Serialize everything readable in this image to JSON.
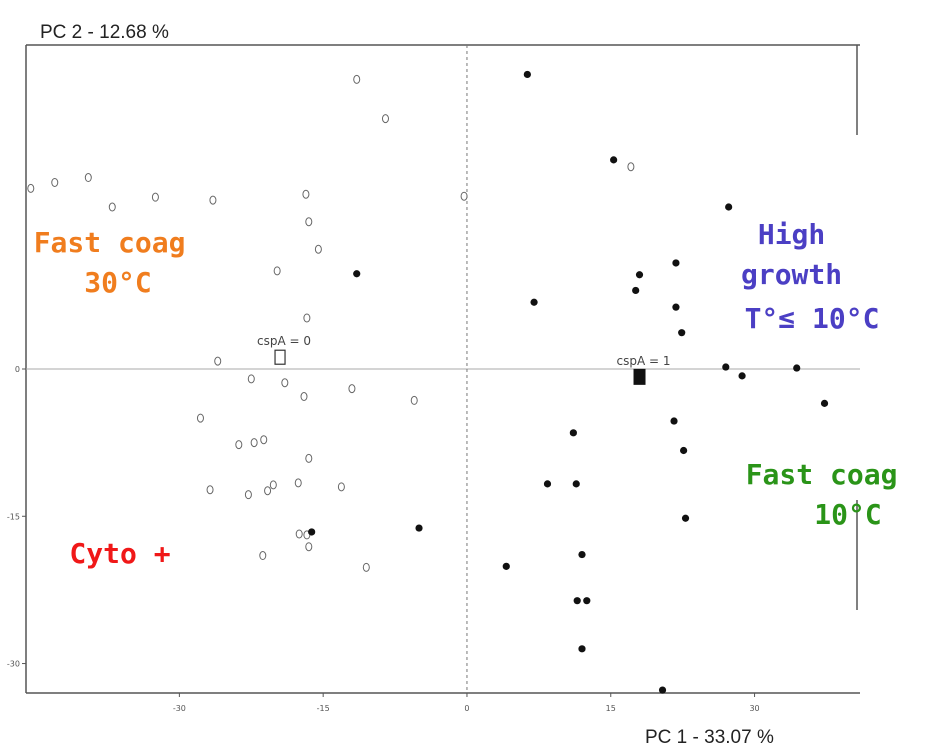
{
  "chart_data": {
    "type": "scatter",
    "title": "",
    "xlabel": "PC 1  -  33.07 %",
    "ylabel": "PC 2  -  12.68 %",
    "xlim": [
      -46,
      41
    ],
    "ylim": [
      -33,
      33
    ],
    "x_ticks": [
      {
        "value": -30,
        "label": "-30"
      },
      {
        "value": -15,
        "label": "-15"
      },
      {
        "value": 0,
        "label": "0"
      },
      {
        "value": 15,
        "label": "15"
      },
      {
        "value": 30,
        "label": "30"
      }
    ],
    "y_ticks": [
      {
        "value": 0,
        "label": "0"
      },
      {
        "value": -15,
        "label": "-15"
      },
      {
        "value": -30,
        "label": "-30"
      }
    ],
    "reference_lines": {
      "x": 0,
      "y": 0
    },
    "series": [
      {
        "name": "",
        "marker": "open-circle",
        "points": [
          [
            -11.5,
            29.5
          ],
          [
            -8.5,
            25.5
          ],
          [
            -43,
            19
          ],
          [
            -39.5,
            19.5
          ],
          [
            -37,
            16.5
          ],
          [
            -32.5,
            17.5
          ],
          [
            -26.5,
            17.2
          ],
          [
            -16.8,
            17.8
          ],
          [
            -16.5,
            15
          ],
          [
            -0.3,
            17.6
          ],
          [
            -15.5,
            12.2
          ],
          [
            -19.8,
            10
          ],
          [
            -16.7,
            5.2
          ],
          [
            -26,
            0.8
          ],
          [
            -22.5,
            -1
          ],
          [
            -19,
            -1.4
          ],
          [
            -17,
            -2.8
          ],
          [
            -12,
            -2
          ],
          [
            -5.5,
            -3.2
          ],
          [
            -27.8,
            -5
          ],
          [
            -23.8,
            -7.7
          ],
          [
            -22.2,
            -7.5
          ],
          [
            -21.2,
            -7.2
          ],
          [
            -16.5,
            -9.1
          ],
          [
            -26.8,
            -12.3
          ],
          [
            -22.8,
            -12.8
          ],
          [
            -20.8,
            -12.4
          ],
          [
            -20.2,
            -11.8
          ],
          [
            -17.6,
            -11.6
          ],
          [
            -13.1,
            -12
          ],
          [
            -17.5,
            -16.8
          ],
          [
            -16.7,
            -16.9
          ],
          [
            -16.5,
            -18.1
          ],
          [
            -21.3,
            -19
          ],
          [
            -10.5,
            -20.2
          ],
          [
            17.1,
            20.6
          ],
          [
            -45.5,
            18.4
          ]
        ]
      },
      {
        "name": "",
        "marker": "filled-circle",
        "points": [
          [
            6.3,
            30
          ],
          [
            15.3,
            21.3
          ],
          [
            27.3,
            16.5
          ],
          [
            21.8,
            10.8
          ],
          [
            18,
            9.6
          ],
          [
            17.6,
            8
          ],
          [
            7,
            6.8
          ],
          [
            21.8,
            6.3
          ],
          [
            22.4,
            3.7
          ],
          [
            27,
            0.2
          ],
          [
            28.7,
            -0.7
          ],
          [
            34.4,
            0.1
          ],
          [
            37.3,
            -3.5
          ],
          [
            21.6,
            -5.3
          ],
          [
            22.6,
            -8.3
          ],
          [
            11.1,
            -6.5
          ],
          [
            8.4,
            -11.7
          ],
          [
            11.4,
            -11.7
          ],
          [
            22.8,
            -15.2
          ],
          [
            -11.5,
            9.7
          ],
          [
            -16.2,
            -16.6
          ],
          [
            -5,
            -16.2
          ],
          [
            12,
            -18.9
          ],
          [
            4.1,
            -20.1
          ],
          [
            11.5,
            -23.6
          ],
          [
            12.5,
            -23.6
          ],
          [
            12,
            -28.5
          ],
          [
            20.4,
            -32.7
          ]
        ]
      }
    ],
    "group_labels": [
      {
        "text": "cspA = 0",
        "x": -19.5,
        "y": 1.2,
        "marker": "open-square"
      },
      {
        "text": "cspA = 1",
        "x": 18,
        "y": -0.8,
        "marker": "filled-square"
      }
    ],
    "annotations": [
      {
        "lines": [
          "Fast coag",
          "30°C"
        ],
        "color": "#f07d1e"
      },
      {
        "lines": [
          "High",
          "growth",
          "T°≤  10°C"
        ],
        "color": "#4b3fc4"
      },
      {
        "lines": [
          "Fast coag",
          "10°C"
        ],
        "color": "#2a9418"
      },
      {
        "lines": [
          "Cyto +"
        ],
        "color": "#f01818"
      }
    ]
  }
}
